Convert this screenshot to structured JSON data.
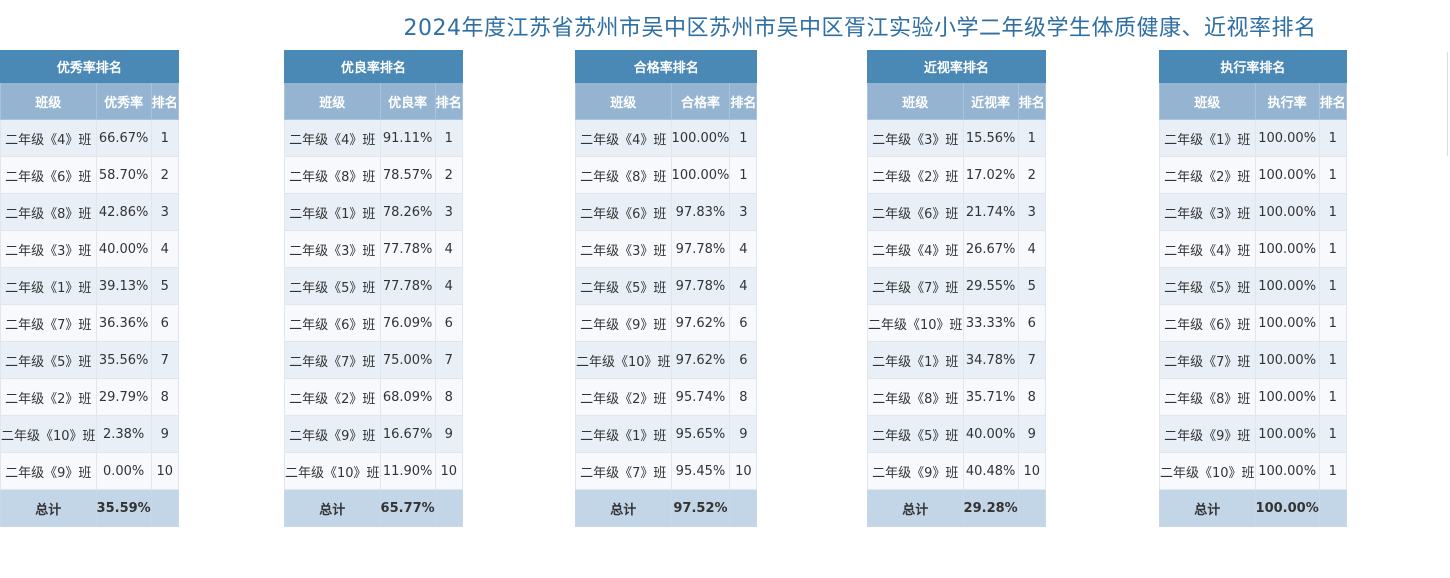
{
  "page": {
    "title": "2024年度江苏省苏州市吴中区苏州市吴中区胥江实验小学二年级学生体质健康、近视率排名"
  },
  "headers": {
    "class": "班级",
    "rank": "排名",
    "total": "总计"
  },
  "tables": [
    {
      "title": "优秀率排名",
      "metric": "优秀率",
      "total": "35.59%",
      "rows": [
        {
          "class": "二年级《4》班",
          "value": "66.67%",
          "rank": "1"
        },
        {
          "class": "二年级《6》班",
          "value": "58.70%",
          "rank": "2"
        },
        {
          "class": "二年级《8》班",
          "value": "42.86%",
          "rank": "3"
        },
        {
          "class": "二年级《3》班",
          "value": "40.00%",
          "rank": "4"
        },
        {
          "class": "二年级《1》班",
          "value": "39.13%",
          "rank": "5"
        },
        {
          "class": "二年级《7》班",
          "value": "36.36%",
          "rank": "6"
        },
        {
          "class": "二年级《5》班",
          "value": "35.56%",
          "rank": "7"
        },
        {
          "class": "二年级《2》班",
          "value": "29.79%",
          "rank": "8"
        },
        {
          "class": "二年级《10》班",
          "value": "2.38%",
          "rank": "9"
        },
        {
          "class": "二年级《9》班",
          "value": "0.00%",
          "rank": "10"
        }
      ]
    },
    {
      "title": "优良率排名",
      "metric": "优良率",
      "total": "65.77%",
      "rows": [
        {
          "class": "二年级《4》班",
          "value": "91.11%",
          "rank": "1"
        },
        {
          "class": "二年级《8》班",
          "value": "78.57%",
          "rank": "2"
        },
        {
          "class": "二年级《1》班",
          "value": "78.26%",
          "rank": "3"
        },
        {
          "class": "二年级《3》班",
          "value": "77.78%",
          "rank": "4"
        },
        {
          "class": "二年级《5》班",
          "value": "77.78%",
          "rank": "4"
        },
        {
          "class": "二年级《6》班",
          "value": "76.09%",
          "rank": "6"
        },
        {
          "class": "二年级《7》班",
          "value": "75.00%",
          "rank": "7"
        },
        {
          "class": "二年级《2》班",
          "value": "68.09%",
          "rank": "8"
        },
        {
          "class": "二年级《9》班",
          "value": "16.67%",
          "rank": "9"
        },
        {
          "class": "二年级《10》班",
          "value": "11.90%",
          "rank": "10"
        }
      ]
    },
    {
      "title": "合格率排名",
      "metric": "合格率",
      "total": "97.52%",
      "rows": [
        {
          "class": "二年级《4》班",
          "value": "100.00%",
          "rank": "1"
        },
        {
          "class": "二年级《8》班",
          "value": "100.00%",
          "rank": "1"
        },
        {
          "class": "二年级《6》班",
          "value": "97.83%",
          "rank": "3"
        },
        {
          "class": "二年级《3》班",
          "value": "97.78%",
          "rank": "4"
        },
        {
          "class": "二年级《5》班",
          "value": "97.78%",
          "rank": "4"
        },
        {
          "class": "二年级《9》班",
          "value": "97.62%",
          "rank": "6"
        },
        {
          "class": "二年级《10》班",
          "value": "97.62%",
          "rank": "6"
        },
        {
          "class": "二年级《2》班",
          "value": "95.74%",
          "rank": "8"
        },
        {
          "class": "二年级《1》班",
          "value": "95.65%",
          "rank": "9"
        },
        {
          "class": "二年级《7》班",
          "value": "95.45%",
          "rank": "10"
        }
      ]
    },
    {
      "title": "近视率排名",
      "metric": "近视率",
      "total": "29.28%",
      "rows": [
        {
          "class": "二年级《3》班",
          "value": "15.56%",
          "rank": "1"
        },
        {
          "class": "二年级《2》班",
          "value": "17.02%",
          "rank": "2"
        },
        {
          "class": "二年级《6》班",
          "value": "21.74%",
          "rank": "3"
        },
        {
          "class": "二年级《4》班",
          "value": "26.67%",
          "rank": "4"
        },
        {
          "class": "二年级《7》班",
          "value": "29.55%",
          "rank": "5"
        },
        {
          "class": "二年级《10》班",
          "value": "33.33%",
          "rank": "6"
        },
        {
          "class": "二年级《1》班",
          "value": "34.78%",
          "rank": "7"
        },
        {
          "class": "二年级《8》班",
          "value": "35.71%",
          "rank": "8"
        },
        {
          "class": "二年级《5》班",
          "value": "40.00%",
          "rank": "9"
        },
        {
          "class": "二年级《9》班",
          "value": "40.48%",
          "rank": "10"
        }
      ]
    },
    {
      "title": "执行率排名",
      "metric": "执行率",
      "total": "100.00%",
      "rows": [
        {
          "class": "二年级《1》班",
          "value": "100.00%",
          "rank": "1"
        },
        {
          "class": "二年级《2》班",
          "value": "100.00%",
          "rank": "1"
        },
        {
          "class": "二年级《3》班",
          "value": "100.00%",
          "rank": "1"
        },
        {
          "class": "二年级《4》班",
          "value": "100.00%",
          "rank": "1"
        },
        {
          "class": "二年级《5》班",
          "value": "100.00%",
          "rank": "1"
        },
        {
          "class": "二年级《6》班",
          "value": "100.00%",
          "rank": "1"
        },
        {
          "class": "二年级《7》班",
          "value": "100.00%",
          "rank": "1"
        },
        {
          "class": "二年级《8》班",
          "value": "100.00%",
          "rank": "1"
        },
        {
          "class": "二年级《9》班",
          "value": "100.00%",
          "rank": "1"
        },
        {
          "class": "二年级《10》班",
          "value": "100.00%",
          "rank": "1"
        }
      ]
    }
  ]
}
